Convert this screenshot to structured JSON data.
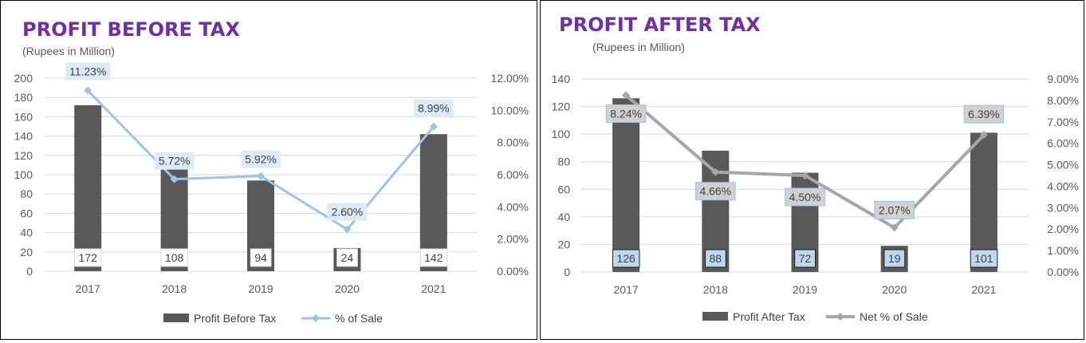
{
  "chart_data": [
    {
      "type": "bar",
      "title": "PROFIT BEFORE TAX",
      "subtitle": "(Rupees in Million)",
      "categories": [
        "2017",
        "2018",
        "2019",
        "2020",
        "2021"
      ],
      "ylim": [
        0,
        200
      ],
      "yticks": [
        "0",
        "20",
        "40",
        "60",
        "80",
        "100",
        "120",
        "140",
        "160",
        "180",
        "200"
      ],
      "y2lim": [
        0,
        12
      ],
      "y2ticks": [
        "0.00%",
        "2.00%",
        "4.00%",
        "6.00%",
        "8.00%",
        "10.00%",
        "12.00%"
      ],
      "series": [
        {
          "name": "Profit Before Tax",
          "type": "bar",
          "values": [
            172,
            108,
            94,
            24,
            142
          ],
          "labels": [
            "172",
            "108",
            "94",
            "24",
            "142"
          ]
        },
        {
          "name": "% of Sale",
          "type": "line",
          "axis": "secondary",
          "values": [
            11.23,
            5.72,
            5.92,
            2.6,
            8.99
          ],
          "labels": [
            "11.23%",
            "5.72%",
            "5.92%",
            "2.60%",
            "8.99%"
          ]
        }
      ],
      "colors": {
        "bar": "#595959",
        "line": "#9dc3e6",
        "label_box": "#deebf7",
        "grid": "#d9d9d9"
      },
      "grid": true,
      "legend": "bottom"
    },
    {
      "type": "bar",
      "title": "PROFIT AFTER TAX",
      "subtitle": "(Rupees in Million)",
      "categories": [
        "2017",
        "2018",
        "2019",
        "2020",
        "2021"
      ],
      "ylim": [
        0,
        140
      ],
      "yticks": [
        "0",
        "20",
        "40",
        "60",
        "80",
        "100",
        "120",
        "140"
      ],
      "y2lim": [
        0,
        9
      ],
      "y2ticks": [
        "0.00%",
        "1.00%",
        "2.00%",
        "3.00%",
        "4.00%",
        "5.00%",
        "6.00%",
        "7.00%",
        "8.00%",
        "9.00%"
      ],
      "series": [
        {
          "name": "Profit After Tax",
          "type": "bar",
          "values": [
            126,
            88,
            72,
            19,
            101
          ],
          "labels": [
            "126",
            "88",
            "72",
            "19",
            "101"
          ]
        },
        {
          "name": "Net % of Sale",
          "type": "line",
          "axis": "secondary",
          "values": [
            8.24,
            4.66,
            4.5,
            2.07,
            6.39
          ],
          "labels": [
            "8.24%",
            "4.66%",
            "4.50%",
            "2.07%",
            "6.39%"
          ]
        }
      ],
      "colors": {
        "bar": "#595959",
        "line": "#a6a6a6",
        "label_box": "#d0d0d0",
        "bar_label_box": "#bdd7ee",
        "grid": "#d9d9d9"
      },
      "grid": true,
      "legend": "bottom"
    }
  ]
}
